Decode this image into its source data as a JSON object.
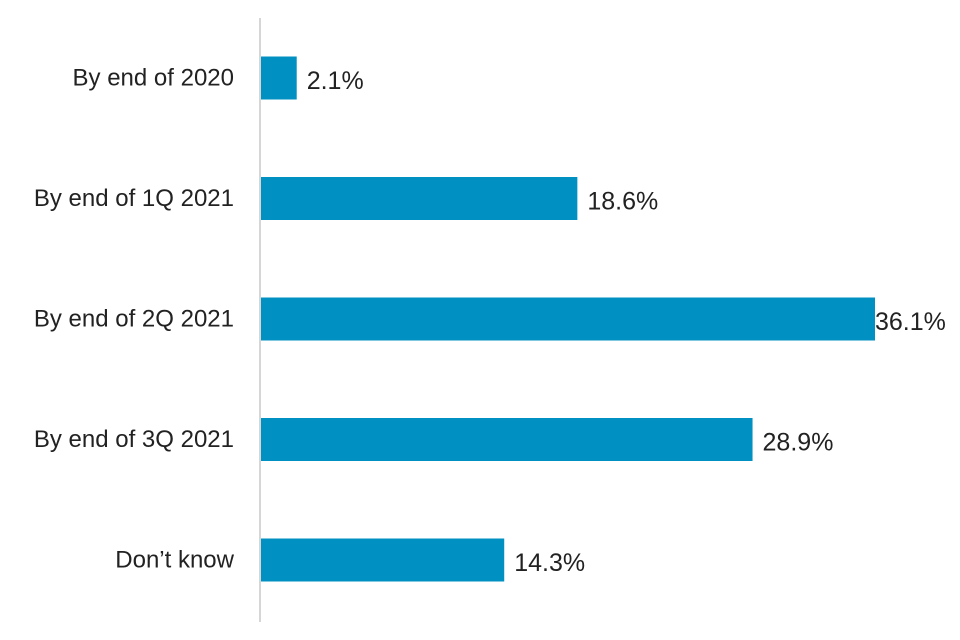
{
  "chart_data": {
    "type": "bar",
    "orientation": "horizontal",
    "categories": [
      "By end of 2020",
      "By end of 1Q 2021",
      "By end of 2Q 2021",
      "By end of 3Q 2021",
      "Don’t know"
    ],
    "values": [
      2.1,
      18.6,
      36.1,
      28.9,
      14.3
    ],
    "value_labels": [
      "2.1%",
      "18.6%",
      "36.1%",
      "28.9%",
      "14.3%"
    ],
    "unit": "%",
    "xlim": [
      0,
      36.1
    ],
    "grid": false,
    "legend": "none",
    "bar_color": "#0090C1",
    "axis_color": "#C8C8C8"
  }
}
